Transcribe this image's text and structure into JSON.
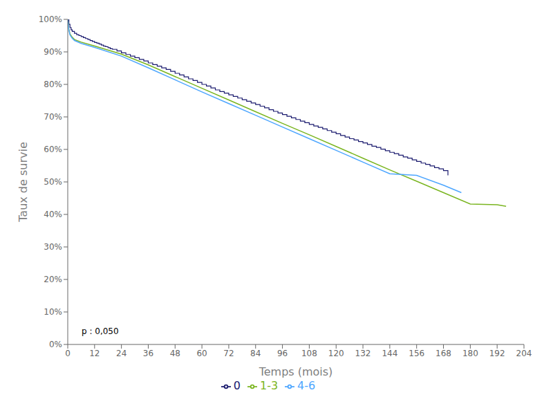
{
  "chart_data": {
    "type": "line",
    "title": "",
    "xlabel": "Temps (mois)",
    "ylabel": "Taux de survie",
    "xlim": [
      0,
      204
    ],
    "ylim": [
      0,
      1.0
    ],
    "xticks": [
      0,
      12,
      24,
      36,
      48,
      60,
      72,
      84,
      96,
      108,
      120,
      132,
      144,
      156,
      168,
      180,
      192,
      204
    ],
    "yticks": [
      {
        "value": 0.0,
        "label": "0%"
      },
      {
        "value": 0.1,
        "label": "10%"
      },
      {
        "value": 0.2,
        "label": "20%"
      },
      {
        "value": 0.3,
        "label": "30%"
      },
      {
        "value": 0.4,
        "label": "40%"
      },
      {
        "value": 0.5,
        "label": "50%"
      },
      {
        "value": 0.6,
        "label": "60%"
      },
      {
        "value": 0.7,
        "label": "70%"
      },
      {
        "value": 0.8,
        "label": "80%"
      },
      {
        "value": 0.9,
        "label": "90%"
      },
      {
        "value": 1.0,
        "label": "100%"
      }
    ],
    "grid": false,
    "legend": "bottom",
    "annotation": "p : 0,050",
    "series": [
      {
        "name": "0",
        "type": "step",
        "color": "#1a1a6e",
        "x": [
          0,
          0.5,
          1,
          1.5,
          2,
          3,
          4,
          5,
          6,
          7,
          8,
          9,
          10,
          11,
          12,
          13,
          14,
          15,
          16,
          17,
          18,
          19,
          20,
          22,
          24,
          26,
          28,
          30,
          32,
          34,
          36,
          38,
          40,
          42,
          44,
          46,
          48,
          50,
          52,
          54,
          56,
          58,
          60,
          62,
          64,
          66,
          68,
          70,
          72,
          74,
          76,
          78,
          80,
          82,
          84,
          86,
          88,
          90,
          92,
          94,
          96,
          98,
          100,
          102,
          104,
          106,
          108,
          110,
          112,
          114,
          116,
          118,
          120,
          122,
          124,
          126,
          128,
          130,
          132,
          134,
          136,
          138,
          140,
          142,
          144,
          146,
          148,
          150,
          152,
          154,
          156,
          158,
          160,
          162,
          164,
          166,
          168,
          170
        ],
        "values": [
          1.0,
          0.985,
          0.975,
          0.968,
          0.963,
          0.957,
          0.953,
          0.95,
          0.947,
          0.944,
          0.941,
          0.938,
          0.935,
          0.932,
          0.929,
          0.927,
          0.924,
          0.921,
          0.918,
          0.916,
          0.913,
          0.91,
          0.908,
          0.903,
          0.897,
          0.892,
          0.887,
          0.882,
          0.877,
          0.872,
          0.866,
          0.861,
          0.856,
          0.851,
          0.846,
          0.84,
          0.834,
          0.829,
          0.823,
          0.817,
          0.812,
          0.806,
          0.8,
          0.795,
          0.789,
          0.783,
          0.778,
          0.773,
          0.768,
          0.763,
          0.758,
          0.753,
          0.748,
          0.743,
          0.738,
          0.733,
          0.728,
          0.722,
          0.717,
          0.712,
          0.707,
          0.702,
          0.697,
          0.692,
          0.687,
          0.682,
          0.677,
          0.672,
          0.668,
          0.663,
          0.658,
          0.653,
          0.648,
          0.643,
          0.638,
          0.633,
          0.629,
          0.624,
          0.62,
          0.615,
          0.61,
          0.606,
          0.601,
          0.596,
          0.591,
          0.587,
          0.582,
          0.577,
          0.573,
          0.568,
          0.563,
          0.558,
          0.554,
          0.549,
          0.544,
          0.54,
          0.535,
          0.52
        ]
      },
      {
        "name": "1-3",
        "type": "line",
        "color": "#7ab520",
        "x": [
          0,
          0.5,
          1,
          2,
          3,
          6,
          12,
          24,
          36,
          48,
          60,
          72,
          84,
          96,
          108,
          120,
          132,
          144,
          156,
          168,
          180,
          192,
          196
        ],
        "values": [
          1.0,
          0.97,
          0.955,
          0.945,
          0.938,
          0.93,
          0.918,
          0.893,
          0.86,
          0.824,
          0.788,
          0.752,
          0.716,
          0.68,
          0.645,
          0.609,
          0.573,
          0.537,
          0.502,
          0.467,
          0.432,
          0.43,
          0.425
        ]
      },
      {
        "name": "4-6",
        "type": "line",
        "color": "#4da6ff",
        "x": [
          0,
          0.5,
          1,
          2,
          3,
          6,
          12,
          24,
          36,
          48,
          60,
          72,
          84,
          96,
          108,
          120,
          132,
          144,
          156,
          168,
          176
        ],
        "values": [
          1.0,
          0.968,
          0.952,
          0.942,
          0.935,
          0.926,
          0.914,
          0.887,
          0.851,
          0.814,
          0.777,
          0.741,
          0.705,
          0.669,
          0.633,
          0.597,
          0.561,
          0.525,
          0.52,
          0.49,
          0.467
        ]
      }
    ]
  }
}
